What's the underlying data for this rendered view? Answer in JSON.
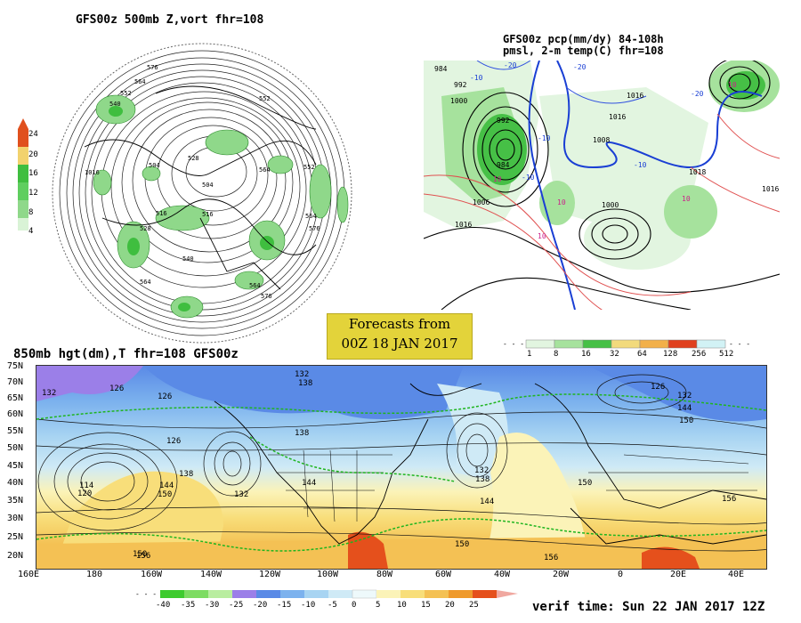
{
  "panel_500mb": {
    "title": "GFS00z  500mb Z,vort   fhr=108",
    "contour_labels": [
      "576",
      "564",
      "552",
      "540",
      "528",
      "516",
      "504",
      "492",
      "516",
      "528",
      "540",
      "552",
      "564",
      "576",
      "564",
      "552",
      "1016",
      "516",
      "528",
      "540",
      "552",
      "564",
      "576",
      "564",
      "552"
    ],
    "colorbar": {
      "labels": [
        "24",
        "20",
        "16",
        "12",
        "8",
        "4"
      ],
      "colors": [
        "#e0501e",
        "#f2a02a",
        "#f2d26e",
        "#3fbe3f",
        "#8fd88a",
        "#d9f3d6"
      ]
    }
  },
  "panel_pcp": {
    "title_line1": "GFS00z pcp(mm/dy) 84-108h",
    "title_line2": "pmsl, 2-m temp(C)  fhr=108",
    "pressure_labels": [
      "984",
      "992",
      "1000",
      "992",
      "984",
      "1006",
      "1008",
      "1016",
      "1010",
      "1018",
      "1016",
      "1000",
      "1016",
      "1016"
    ],
    "temp_labels": [
      "-20",
      "-10",
      "-20",
      "-10",
      "-30",
      "-20",
      "-10",
      "10",
      "10",
      "10",
      "10"
    ],
    "colorbar": {
      "labels": [
        "1",
        "8",
        "16",
        "32",
        "64",
        "128",
        "256",
        "512"
      ],
      "colors": [
        "#e2f5e0",
        "#a6e29d",
        "#46c046",
        "#f2da7c",
        "#f2b04a",
        "#f08a1c",
        "#e0401e",
        "#d2f2f5"
      ]
    }
  },
  "forecast_box": {
    "line1": "Forecasts from",
    "line2": "00Z 18 JAN 2017"
  },
  "panel_850mb": {
    "title": "850mb hgt(dm),T   fhr=108 GFS00z",
    "lat_labels": [
      "75N",
      "70N",
      "65N",
      "60N",
      "55N",
      "50N",
      "45N",
      "40N",
      "35N",
      "30N",
      "25N",
      "20N"
    ],
    "lon_labels": [
      "160E",
      "180",
      "160W",
      "140W",
      "120W",
      "100W",
      "80W",
      "60W",
      "40W",
      "20W",
      "0",
      "20E",
      "40E"
    ],
    "contour_labels": [
      "132",
      "126",
      "132",
      "126",
      "132",
      "138",
      "126",
      "114",
      "120",
      "138",
      "144",
      "150",
      "132",
      "144",
      "138",
      "126",
      "150",
      "132",
      "138",
      "144",
      "150",
      "150",
      "156",
      "156",
      "150",
      "144",
      "132"
    ],
    "colorbar": {
      "labels": [
        "-40",
        "-35",
        "-30",
        "-25",
        "-20",
        "-15",
        "-10",
        "-5",
        "0",
        "5",
        "10",
        "15",
        "20",
        "25"
      ],
      "colors": [
        "#3ecb2e",
        "#7ddc62",
        "#b9eda0",
        "#9b7fe8",
        "#5a8ae6",
        "#7cb2ee",
        "#a8d4f2",
        "#cfeaf6",
        "#eef9fb",
        "#fbf3b8",
        "#f8de7a",
        "#f4c154",
        "#ef9a2c",
        "#e5501c",
        "#f0a8a0"
      ]
    }
  },
  "verif_time": "verif time: Sun 22 JAN 2017 12Z"
}
